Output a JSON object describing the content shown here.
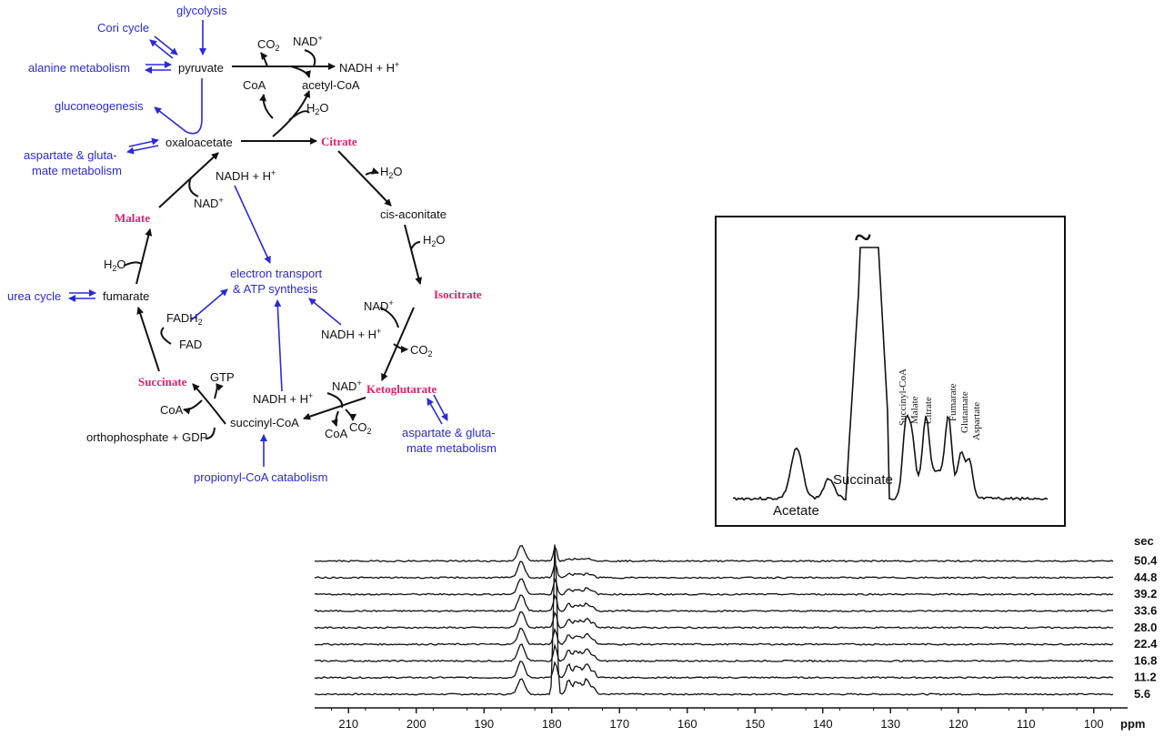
{
  "pathway": {
    "inputs": {
      "glycolysis": "glycolysis",
      "cori_cycle": "Cori cycle",
      "alanine": "alanine metabolism",
      "gluconeogenesis": "gluconeogenesis",
      "aspartate_left_1": "aspartate & gluta-",
      "aspartate_left_2": "mate metabolism",
      "urea_cycle": "urea cycle",
      "electron_1": "electron transport",
      "electron_2": "& ATP synthesis",
      "aspartate_right_1": "aspartate & gluta-",
      "aspartate_right_2": "mate metabolism",
      "propionyl": "propionyl-CoA catabolism"
    },
    "metabolites": {
      "pyruvate": "pyruvate",
      "co2_top": "CO",
      "nad_top": "NAD",
      "nadh_top": "NADH + H",
      "coa_top": "CoA",
      "acetyl_coa": "acetyl-CoA",
      "h2o_top": "H",
      "oxaloacetate": "oxaloacetate",
      "citrate": "Citrate",
      "h2o_citrate": "H",
      "nadh_malate": "NADH + H",
      "nad_malate": "NAD",
      "cis_aconitate": "cis-aconitate",
      "malate": "Malate",
      "h2o_aconitate": "H",
      "h2o_fumarate": "H",
      "fumarate": "fumarate",
      "isocitrate": "Isocitrate",
      "nad_isocitrate": "NAD",
      "fadh2": "FADH",
      "nadh_isocitrate": "NADH + H",
      "fad": "FAD",
      "co2_isocitrate": "CO",
      "gtp": "GTP",
      "succinate": "Succinate",
      "nad_keto": "NAD",
      "nadh_keto": "NADH + H",
      "ketoglutarate": "Ketoglutarate",
      "coa_succinate": "CoA",
      "succinyl_coa": "succinyl-CoA",
      "coa_keto": "CoA",
      "co2_keto": "CO",
      "orthophosphate": "orthophosphate + GDP",
      "sub_2": "2",
      "sup_plus": "+"
    }
  },
  "inset": {
    "break_symbol": "~",
    "peaks": {
      "succinyl_coa": "Succinyl-CoA",
      "malate": "Malate",
      "citrate": "Citrate",
      "fumarate": "Fumarate",
      "glutamate": "Glutamate",
      "aspartate": "Aspartate"
    },
    "acetate": "Acetate",
    "succinate": "Succinate"
  },
  "chart_data": {
    "type": "line",
    "title": "",
    "xlabel": "ppm",
    "ylabel": "",
    "xlim": [
      215,
      95
    ],
    "x_reversed": true,
    "xticks": [
      210,
      200,
      190,
      180,
      170,
      160,
      150,
      140,
      130,
      120,
      110,
      100
    ],
    "time_label": "sec",
    "series": [
      {
        "name": "5.6"
      },
      {
        "name": "11.2"
      },
      {
        "name": "16.8"
      },
      {
        "name": "22.4"
      },
      {
        "name": "28.0"
      },
      {
        "name": "33.6"
      },
      {
        "name": "39.2"
      },
      {
        "name": "44.8"
      },
      {
        "name": "50.4"
      }
    ],
    "peaks_ppm": {
      "acetate": 184.5,
      "succinate": 179.5,
      "succinyl_coa": 177.5,
      "malate": 176.5,
      "citrate": 175.8,
      "fumarate": 175.0,
      "glutamate": 174.5,
      "aspartate": 173.8
    }
  }
}
